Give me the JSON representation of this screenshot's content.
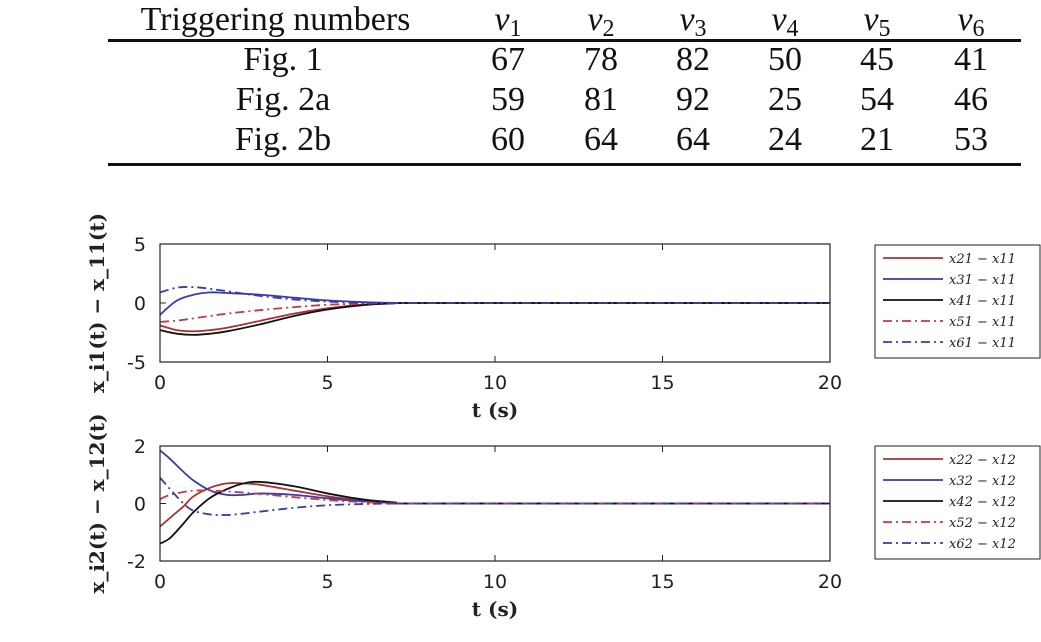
{
  "table": {
    "header_label": "Triggering numbers",
    "columns": [
      {
        "var": "v",
        "sub": "1"
      },
      {
        "var": "v",
        "sub": "2"
      },
      {
        "var": "v",
        "sub": "3"
      },
      {
        "var": "v",
        "sub": "4"
      },
      {
        "var": "v",
        "sub": "5"
      },
      {
        "var": "v",
        "sub": "6"
      }
    ],
    "rows": [
      {
        "label": "Fig. 1",
        "values": [
          "67",
          "78",
          "82",
          "50",
          "45",
          "41"
        ]
      },
      {
        "label": "Fig. 2a",
        "values": [
          "59",
          "81",
          "92",
          "25",
          "54",
          "46"
        ]
      },
      {
        "label": "Fig. 2b",
        "values": [
          "60",
          "64",
          "64",
          "24",
          "21",
          "53"
        ]
      }
    ]
  },
  "chart_data": [
    {
      "type": "line",
      "xlabel": "t (s)",
      "ylabel": "x_i1(t) − x_11(t)",
      "xlim": [
        0,
        20
      ],
      "ylim": [
        -5,
        5
      ],
      "xticks": [
        "0",
        "5",
        "10",
        "15",
        "20"
      ],
      "yticks": [
        "5",
        "0",
        "-5"
      ],
      "grid": false,
      "legend_position": "right",
      "series": [
        {
          "name": "x21 − x11",
          "style": "solid",
          "color": "#a83232",
          "x": [
            0,
            0.5,
            1,
            1.5,
            2,
            3,
            4,
            5,
            6,
            7,
            8,
            20
          ],
          "y": [
            -1.9,
            -2.3,
            -2.4,
            -2.3,
            -2.1,
            -1.5,
            -0.9,
            -0.45,
            -0.15,
            -0.02,
            0,
            0
          ]
        },
        {
          "name": "x31 − x11",
          "style": "solid",
          "color": "#3a3aa8",
          "x": [
            0,
            0.5,
            1,
            1.5,
            2,
            3,
            4,
            5,
            6,
            7,
            8,
            20
          ],
          "y": [
            -1.0,
            0.2,
            0.7,
            0.9,
            0.85,
            0.7,
            0.45,
            0.22,
            0.08,
            0.01,
            0,
            0
          ]
        },
        {
          "name": "x41 − x11",
          "style": "solid",
          "color": "#111111",
          "x": [
            0,
            0.5,
            1,
            1.5,
            2,
            3,
            4,
            5,
            6,
            7,
            8,
            20
          ],
          "y": [
            -2.3,
            -2.6,
            -2.7,
            -2.6,
            -2.4,
            -1.8,
            -1.1,
            -0.55,
            -0.2,
            -0.03,
            0,
            0
          ]
        },
        {
          "name": "x51 − x11",
          "style": "dashdot",
          "color": "#b84040",
          "x": [
            0,
            0.5,
            1,
            1.5,
            2,
            3,
            4,
            5,
            6,
            7,
            8,
            20
          ],
          "y": [
            -1.6,
            -1.5,
            -1.3,
            -1.1,
            -0.9,
            -0.6,
            -0.35,
            -0.15,
            -0.05,
            0,
            0,
            0
          ]
        },
        {
          "name": "x61 − x11",
          "style": "dashdot",
          "color": "#3a3aa8",
          "x": [
            0,
            0.5,
            1,
            1.5,
            2,
            3,
            4,
            5,
            6,
            7,
            8,
            20
          ],
          "y": [
            0.9,
            1.3,
            1.35,
            1.2,
            1.0,
            0.6,
            0.3,
            0.12,
            0.03,
            0,
            0,
            0
          ]
        }
      ]
    },
    {
      "type": "line",
      "xlabel": "t (s)",
      "ylabel": "x_i2(t) − x_12(t)",
      "xlim": [
        0,
        20
      ],
      "ylim": [
        -2,
        2
      ],
      "xticks": [
        "0",
        "5",
        "10",
        "15",
        "20"
      ],
      "yticks": [
        "2",
        "0",
        "-2"
      ],
      "grid": false,
      "legend_position": "right",
      "series": [
        {
          "name": "x22 − x12",
          "style": "solid",
          "color": "#a83232",
          "x": [
            0,
            0.3,
            0.7,
            1,
            1.5,
            2,
            2.5,
            3,
            4,
            5,
            6,
            7,
            8,
            20
          ],
          "y": [
            -0.8,
            -0.5,
            -0.1,
            0.25,
            0.55,
            0.7,
            0.7,
            0.65,
            0.45,
            0.25,
            0.1,
            0.03,
            0,
            0
          ]
        },
        {
          "name": "x32 − x12",
          "style": "solid",
          "color": "#3a3aa8",
          "x": [
            0,
            0.3,
            0.7,
            1,
            1.5,
            2,
            2.5,
            3,
            4,
            5,
            6,
            7,
            8,
            20
          ],
          "y": [
            1.85,
            1.55,
            1.1,
            0.8,
            0.45,
            0.3,
            0.3,
            0.35,
            0.3,
            0.18,
            0.08,
            0.02,
            0,
            0
          ]
        },
        {
          "name": "x42 − x12",
          "style": "solid",
          "color": "#111111",
          "x": [
            0,
            0.3,
            0.7,
            1,
            1.5,
            2,
            2.5,
            3,
            4,
            5,
            6,
            7,
            8,
            20
          ],
          "y": [
            -1.4,
            -1.2,
            -0.7,
            -0.3,
            0.2,
            0.5,
            0.7,
            0.75,
            0.6,
            0.35,
            0.15,
            0.04,
            0,
            0
          ]
        },
        {
          "name": "x52 − x12",
          "style": "dashdot",
          "color": "#b84040",
          "x": [
            0,
            0.3,
            0.7,
            1,
            1.5,
            2,
            2.5,
            3,
            4,
            5,
            6,
            7,
            8,
            20
          ],
          "y": [
            0.15,
            0.3,
            0.4,
            0.45,
            0.45,
            0.42,
            0.38,
            0.33,
            0.22,
            0.12,
            0.05,
            0.01,
            0,
            0
          ]
        },
        {
          "name": "x62 − x12",
          "style": "dashdot",
          "color": "#3a3aa8",
          "x": [
            0,
            0.3,
            0.7,
            1,
            1.5,
            2,
            2.5,
            3,
            4,
            5,
            6,
            7,
            8,
            20
          ],
          "y": [
            0.9,
            0.5,
            0.0,
            -0.25,
            -0.38,
            -0.4,
            -0.35,
            -0.28,
            -0.15,
            -0.06,
            -0.02,
            0,
            0,
            0
          ]
        }
      ]
    }
  ]
}
